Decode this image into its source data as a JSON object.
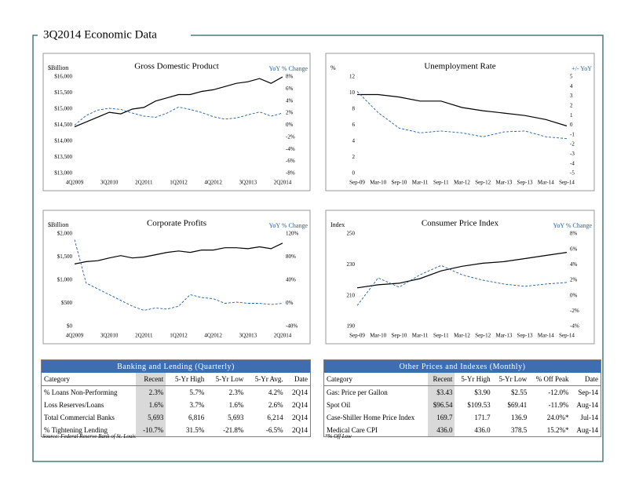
{
  "title": "3Q2014 Economic Data",
  "chart_data": [
    {
      "type": "line",
      "title": "Gross Domestic Product",
      "ylabel": "$Billion",
      "y2label": "YoY % Change",
      "categories": [
        "4Q2009",
        null,
        null,
        "3Q2010",
        null,
        null,
        "2Q2011",
        null,
        null,
        "1Q2012",
        null,
        null,
        "4Q2012",
        null,
        null,
        "3Q2013",
        null,
        null,
        "2Q2014"
      ],
      "ylim": [
        13000,
        16000
      ],
      "yticks": [
        {
          "value": 13000,
          "label": "$13,000"
        },
        {
          "value": 13500,
          "label": "$13,500"
        },
        {
          "value": 14000,
          "label": "$14,000"
        },
        {
          "value": 14500,
          "label": "$14,500"
        },
        {
          "value": 15000,
          "label": "$15,000"
        },
        {
          "value": 15500,
          "label": "$15,500"
        },
        {
          "value": 16000,
          "label": "$16,000"
        }
      ],
      "y2lim": [
        -8,
        8
      ],
      "y2ticks": [
        {
          "value": -8,
          "label": "-8%"
        },
        {
          "value": -6,
          "label": "-6%"
        },
        {
          "value": -4,
          "label": "-4%"
        },
        {
          "value": -2,
          "label": "-2%"
        },
        {
          "value": 0,
          "label": "0%"
        },
        {
          "value": 2,
          "label": "2%"
        },
        {
          "value": 4,
          "label": "4%"
        },
        {
          "value": 6,
          "label": "6%"
        },
        {
          "value": 8,
          "label": "8%"
        }
      ],
      "series": [
        {
          "color": "#000000",
          "values": [
            14450,
            14600,
            14750,
            14900,
            14850,
            15000,
            15050,
            15250,
            15350,
            15450,
            15450,
            15550,
            15600,
            15700,
            15800,
            15850,
            15950,
            15800,
            16000
          ]
        },
        {
          "color": "#1f5fa8",
          "dashed": true,
          "axis": "y2",
          "values": [
            0,
            1.6,
            2.5,
            2.8,
            2.6,
            2,
            1.5,
            1.3,
            2,
            3,
            2.6,
            2.1,
            1.4,
            1,
            1.2,
            1.7,
            2.2,
            1.5,
            2
          ]
        }
      ]
    },
    {
      "type": "line",
      "title": "Unemployment Rate",
      "ylabel": "%",
      "y2label": "+/- YoY",
      "categories": [
        "Sep-09",
        "Mar-10",
        "Sep-10",
        "Mar-11",
        "Sep-11",
        "Mar-12",
        "Sep-12",
        "Mar-13",
        "Sep-13",
        "Mar-14",
        "Sep-14"
      ],
      "ylim": [
        0,
        12
      ],
      "yticks": [
        0,
        2,
        4,
        6,
        8,
        10,
        12
      ],
      "y2lim": [
        -5,
        5
      ],
      "y2ticks": [
        -5,
        -4,
        -3,
        -2,
        -1,
        0,
        1,
        2,
        3,
        4,
        5
      ],
      "series": [
        {
          "color": "#000000",
          "values": [
            9.8,
            9.8,
            9.5,
            9.0,
            9.0,
            8.2,
            7.8,
            7.5,
            7.2,
            6.7,
            5.9
          ]
        },
        {
          "color": "#1f5fa8",
          "dashed": true,
          "axis": "y2",
          "values": [
            3.5,
            1.3,
            -0.3,
            -0.8,
            -0.6,
            -0.8,
            -1.2,
            -0.7,
            -0.6,
            -1.2,
            -1.4
          ]
        }
      ]
    },
    {
      "type": "line",
      "title": "Corporate Profits",
      "ylabel": "$Billion",
      "y2label": "YoY % Change",
      "categories": [
        "4Q2009",
        null,
        null,
        "3Q2010",
        null,
        null,
        "2Q2011",
        null,
        null,
        "1Q2012",
        null,
        null,
        "4Q2012",
        null,
        null,
        "3Q2013",
        null,
        null,
        "2Q2014"
      ],
      "ylim": [
        0,
        2000
      ],
      "yticks": [
        {
          "value": 0,
          "label": "$0"
        },
        {
          "value": 500,
          "label": "$500"
        },
        {
          "value": 1000,
          "label": "$1,000"
        },
        {
          "value": 1500,
          "label": "$1,500"
        },
        {
          "value": 2000,
          "label": "$2,000"
        }
      ],
      "y2lim": [
        -40,
        120
      ],
      "y2ticks": [
        {
          "value": -40,
          "label": "-40%"
        },
        {
          "value": 0,
          "label": "0%"
        },
        {
          "value": 40,
          "label": "40%"
        },
        {
          "value": 80,
          "label": "80%"
        },
        {
          "value": 120,
          "label": "120%"
        }
      ],
      "series": [
        {
          "color": "#000000",
          "values": [
            1350,
            1400,
            1420,
            1480,
            1530,
            1480,
            1500,
            1550,
            1600,
            1630,
            1600,
            1650,
            1650,
            1700,
            1700,
            1680,
            1720,
            1680,
            1800
          ]
        },
        {
          "color": "#1f5fa8",
          "dashed": true,
          "axis": "y2",
          "values": [
            110,
            35,
            25,
            15,
            5,
            -5,
            -12,
            -8,
            -10,
            -5,
            15,
            10,
            8,
            0,
            2,
            0,
            0,
            -2,
            0
          ]
        }
      ]
    },
    {
      "type": "line",
      "title": "Consumer Price Index",
      "ylabel": "Index",
      "y2label": "YoY % Change",
      "categories": [
        "Sep-09",
        "Mar-10",
        "Sep-10",
        "Mar-11",
        "Sep-11",
        "Mar-12",
        "Sep-12",
        "Mar-13",
        "Sep-13",
        "Mar-14",
        "Sep-14"
      ],
      "ylim": [
        190,
        250
      ],
      "yticks": [
        190,
        210,
        230,
        250
      ],
      "y2lim": [
        -4,
        8
      ],
      "y2ticks": [
        {
          "value": -4,
          "label": "-4%"
        },
        {
          "value": -2,
          "label": "-2%"
        },
        {
          "value": 0,
          "label": "0%"
        },
        {
          "value": 2,
          "label": "2%"
        },
        {
          "value": 4,
          "label": "4%"
        },
        {
          "value": 6,
          "label": "6%"
        },
        {
          "value": 8,
          "label": "8%"
        }
      ],
      "series": [
        {
          "color": "#000000",
          "values": [
            215,
            217,
            218,
            221,
            226,
            229,
            231,
            232,
            234,
            236,
            238
          ]
        },
        {
          "color": "#1f5fa8",
          "dashed": true,
          "axis": "y2",
          "values": [
            -1.3,
            2.3,
            1.1,
            2.7,
            3.9,
            2.7,
            2.0,
            1.5,
            1.2,
            1.5,
            1.7
          ]
        }
      ]
    }
  ],
  "tables": [
    {
      "title": "Banking and Lending (Quarterly)",
      "columns": [
        "Category",
        "Recent",
        "5-Yr High",
        "5-Yr Low",
        "5-Yr Avg.",
        "Date"
      ],
      "rows": [
        [
          "% Loans Non-Performing",
          "2.3%",
          "5.7%",
          "2.3%",
          "4.2%",
          "2Q14"
        ],
        [
          "Loss Reserves/Loans",
          "1.6%",
          "3.7%",
          "1.6%",
          "2.6%",
          "2Q14"
        ],
        [
          "Total Commercial Banks",
          "5,693",
          "6,816",
          "5,693",
          "6,214",
          "2Q14"
        ],
        [
          "% Tightening Lending",
          "-10.7%",
          "31.5%",
          "-21.8%",
          "-6.5%",
          "2Q14"
        ]
      ]
    },
    {
      "title": "Other Prices and Indexes (Monthly)",
      "columns": [
        "Category",
        "Recent",
        "5-Yr High",
        "5-Yr Low",
        "% Off Peak",
        "Date"
      ],
      "rows": [
        [
          "Gas: Price per Gallon",
          "$3.43",
          "$3.90",
          "$2.55",
          "-12.0%",
          "Sep-14"
        ],
        [
          "Spot Oil",
          "$96.54",
          "$109.53",
          "$69.41",
          "-11.9%",
          "Aug-14"
        ],
        [
          "Case-Shiller Home Price Index",
          "169.7",
          "171.7",
          "136.9",
          "24.0%*",
          "Jul-14"
        ],
        [
          "Medical Care CPI",
          "436.0",
          "436.0",
          "378.5",
          "15.2%*",
          "Aug-14"
        ]
      ]
    }
  ],
  "source": "Source: Federal Reserve Bank of St. Louis",
  "note": "*% Off Low"
}
